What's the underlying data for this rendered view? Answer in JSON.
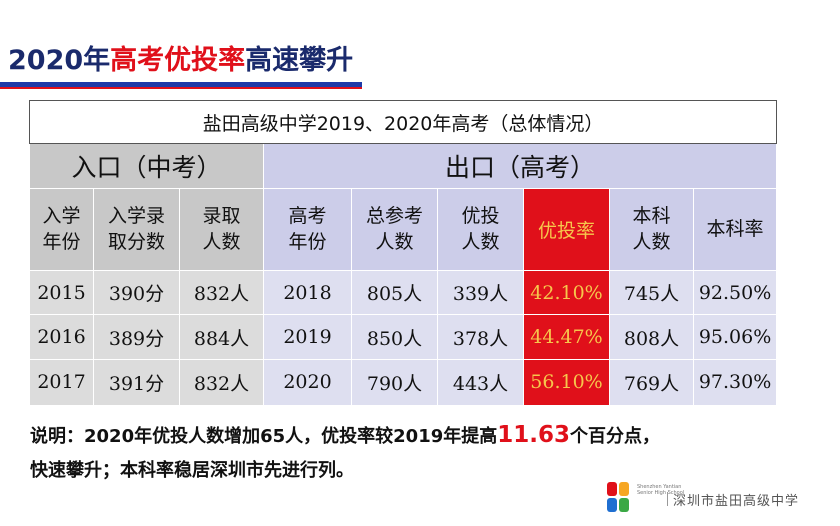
{
  "title": {
    "part1": "2020年",
    "part2": "高考优投率",
    "part3": "高速攀升"
  },
  "table": {
    "caption": "盐田高级中学2019、2020年高考（总体情况）",
    "group_in": "入口（中考）",
    "group_out": "出口（高考）",
    "headers": [
      {
        "l1": "入学",
        "l2": "年份"
      },
      {
        "l1": "入学录",
        "l2": "取分数"
      },
      {
        "l1": "录取",
        "l2": "人数"
      },
      {
        "l1": "高考",
        "l2": "年份"
      },
      {
        "l1": "总参考",
        "l2": "人数"
      },
      {
        "l1": "优投",
        "l2": "人数"
      },
      {
        "l1": "优投率",
        "l2": ""
      },
      {
        "l1": "本科",
        "l2": "人数"
      },
      {
        "l1": "本科率",
        "l2": ""
      }
    ],
    "rows": [
      [
        "2015",
        "390分",
        "832人",
        "2018",
        "805人",
        "339人",
        "42.10%",
        "745人",
        "92.50%"
      ],
      [
        "2016",
        "389分",
        "884人",
        "2019",
        "850人",
        "378人",
        "44.47%",
        "808人",
        "95.06%"
      ],
      [
        "2017",
        "391分",
        "832人",
        "2020",
        "790人",
        "443人",
        "56.10%",
        "769人",
        "97.30%"
      ]
    ]
  },
  "note": {
    "line1_a": "说明：2020年优投人数增加65人，优投率较2019年提高",
    "line1_num": "11.63",
    "line1_b": "个百分点，",
    "line2": "快速攀升；本科率稳居深圳市先进行列。"
  },
  "logo": {
    "en": "Shenzhen Yantian Senior High School",
    "cn": "深圳市盐田高级中学"
  },
  "colors": {
    "title_blue": "#1a2a6c",
    "accent_red": "#e0101a",
    "accent_text": "#f6c64c",
    "in_header": "#c8c8c8",
    "out_header": "#cccde9"
  }
}
